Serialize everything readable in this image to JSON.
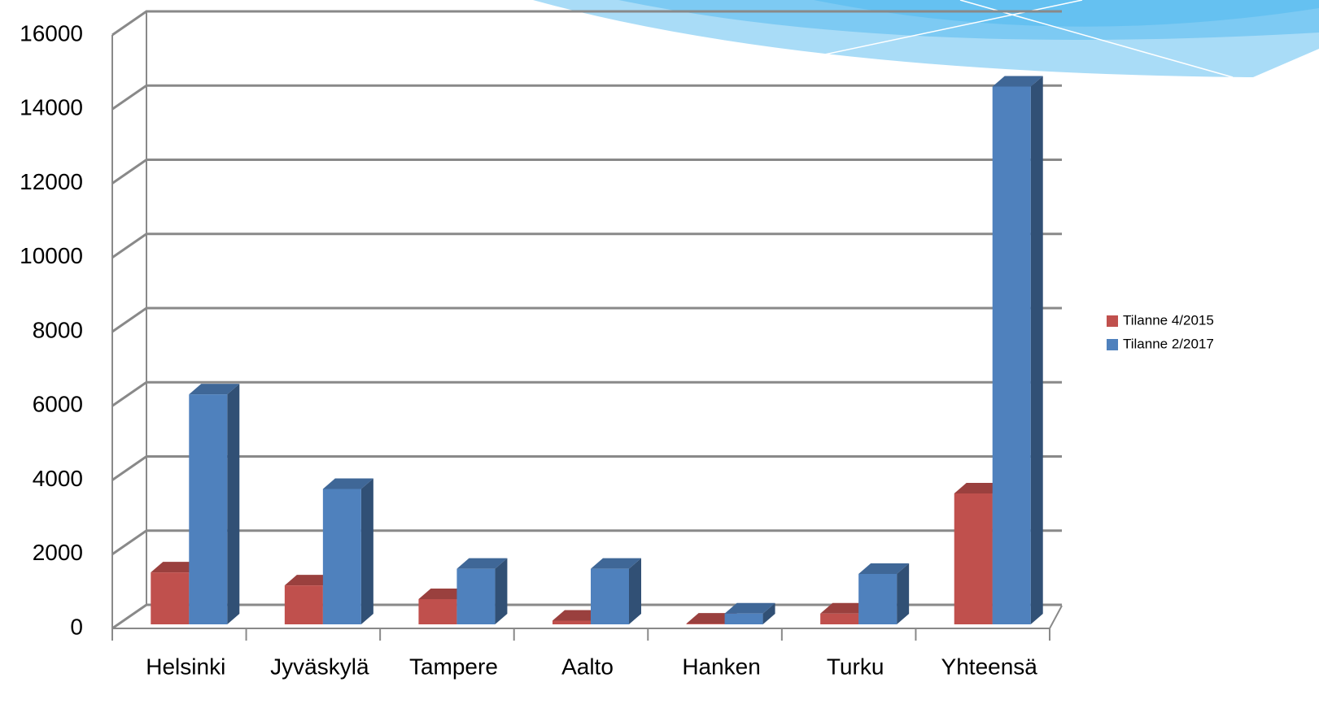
{
  "chart_data": {
    "type": "bar3d",
    "categories": [
      "Helsinki",
      "Jyväskylä",
      "Tampere",
      "Aalto",
      "Hanken",
      "Turku",
      "Yhteensä"
    ],
    "series": [
      {
        "name": "Tilanne 4/2015",
        "color": "#c0504d",
        "values": [
          1400,
          1050,
          680,
          100,
          20,
          290,
          3530
        ]
      },
      {
        "name": "Tilanne 2/2017",
        "color": "#4f81bd",
        "values": [
          6200,
          3650,
          1500,
          1500,
          290,
          1360,
          14500
        ]
      }
    ],
    "ylim": [
      0,
      16000
    ],
    "yticks": [
      0,
      2000,
      4000,
      6000,
      8000,
      10000,
      12000,
      14000,
      16000
    ],
    "grid": true,
    "legend": "right"
  }
}
